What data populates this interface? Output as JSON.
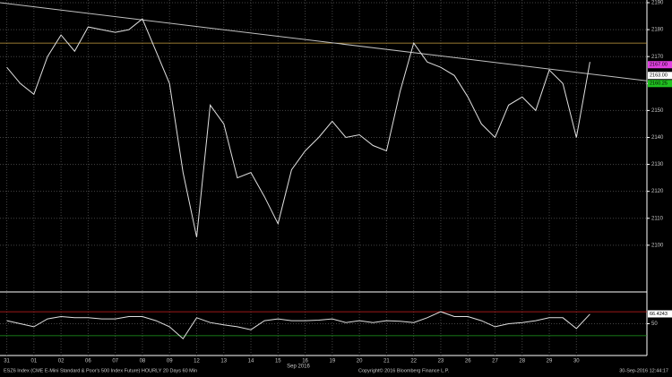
{
  "chart_data": [
    {
      "type": "line",
      "ylim": [
        2083,
        2191
      ],
      "yticks": [
        2100,
        2110,
        2120,
        2130,
        2140,
        2150,
        2160,
        2170,
        2180,
        2190
      ],
      "grid": true,
      "categories": [
        "31",
        null,
        "01",
        null,
        "02",
        null,
        "06",
        null,
        "07",
        null,
        "08",
        null,
        "09",
        null,
        "12",
        null,
        "13",
        null,
        "14",
        null,
        "15",
        null,
        "16",
        null,
        "19",
        null,
        "20",
        null,
        "21",
        null,
        "22",
        null,
        "23",
        null,
        "26",
        null,
        "27",
        null,
        "28",
        null,
        "29",
        null,
        "30",
        null
      ],
      "x_label": "Sep 2016",
      "series": [
        {
          "color": "#e0e0e0",
          "values": [
            2166,
            2160,
            2156,
            2170,
            2178,
            2172,
            2181,
            2180,
            2179,
            2180,
            2184,
            2172,
            2160,
            2127,
            2103,
            2152,
            2145,
            2125,
            2127,
            2118,
            2108,
            2128,
            2135,
            2140,
            2146,
            2140,
            2141,
            2137,
            2135,
            2157,
            2175,
            2168,
            2166,
            2163,
            2155,
            2145,
            2140,
            2152,
            2155,
            2150,
            2165,
            2160,
            2140,
            2168
          ]
        }
      ],
      "hlines": [
        {
          "value": 2175,
          "color": "#c8a040"
        }
      ],
      "trendline": {
        "start": 2190,
        "end": 2161,
        "color": "#c0c0c0"
      },
      "price_tags": [
        {
          "value": 2167,
          "label": "2167.00",
          "color": "#e040e0"
        },
        {
          "value": 2163,
          "label": "2163.00",
          "color": "#ffffff"
        },
        {
          "value": 2160,
          "label": "2160.25",
          "color": "#20c020"
        }
      ]
    },
    {
      "type": "line",
      "ylim": [
        0,
        100
      ],
      "yticks": [
        50
      ],
      "grid": true,
      "series": [
        {
          "color": "#e0e0e0",
          "values": [
            55,
            50,
            45,
            58,
            62,
            60,
            60,
            58,
            58,
            62,
            62,
            55,
            45,
            25,
            60,
            52,
            48,
            45,
            40,
            55,
            58,
            55,
            55,
            56,
            58,
            52,
            55,
            52,
            55,
            54,
            52,
            60,
            70,
            62,
            62,
            55,
            45,
            50,
            52,
            55,
            60,
            60,
            42,
            66
          ]
        }
      ],
      "hlines": [
        {
          "value": 70,
          "color": "#d02020"
        },
        {
          "value": 30,
          "color": "#20a020"
        }
      ],
      "price_tags": [
        {
          "value": 66.4243,
          "label": "66.4243",
          "color": "#ffffff"
        }
      ]
    }
  ],
  "footer": {
    "left": "ESZ6 Index (CME E-Mini Standard & Poor's 500 Index Future) HOURLY 20 Days 60 Min",
    "center": "Copyright© 2016 Bloomberg Finance L.P.",
    "right": "30-Sep-2016 12:44:17"
  }
}
